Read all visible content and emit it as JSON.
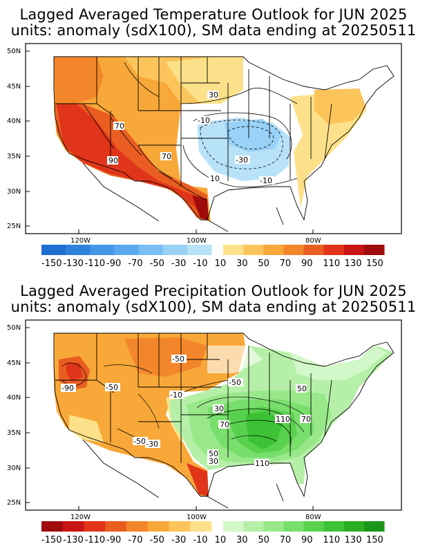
{
  "temperature": {
    "title_line1": "Lagged Averaged Temperature Outlook for JUN 2025",
    "title_line2": "units: anomaly (sdX100), SM data ending at 20250511",
    "lat_labels": [
      "50N",
      "45N",
      "40N",
      "35N",
      "30N",
      "25N"
    ],
    "lon_labels": [
      "120W",
      "100W",
      "80W"
    ],
    "contour_labels": [
      "30",
      "-10",
      "70",
      "70",
      "90",
      "-30",
      "10",
      "-10",
      "70"
    ],
    "colorbar": {
      "labels": [
        "-150",
        "-130",
        "-110",
        "-90",
        "-70",
        "-50",
        "-30",
        "-10",
        "10",
        "30",
        "50",
        "70",
        "90",
        "110",
        "130",
        "150"
      ],
      "neg_colors": [
        "#1e6ed2",
        "#2f82dc",
        "#4496e6",
        "#5aa9ee",
        "#78bef4",
        "#99d1f7",
        "#b8e2f8"
      ],
      "pos_colors": [
        "#fde18a",
        "#fcc55c",
        "#f8a838",
        "#f3862a",
        "#ea5d20",
        "#e0351a",
        "#c81414",
        "#a00c0c"
      ]
    }
  },
  "precipitation": {
    "title_line1": "Lagged Averaged Precipitation Outlook for JUN 2025",
    "title_line2": "units: anomaly (sdX100), SM data ending at 20250511",
    "lat_labels": [
      "50N",
      "45N",
      "40N",
      "35N",
      "30N",
      "25N"
    ],
    "lon_labels": [
      "120W",
      "100W",
      "80W"
    ],
    "contour_labels": [
      "-90",
      "-50",
      "-50",
      "-50",
      "-10",
      "30",
      "70",
      "50",
      "-50",
      "-30",
      "50",
      "30",
      "110",
      "110",
      "70",
      "110",
      "50"
    ],
    "colorbar": {
      "labels": [
        "-150",
        "-130",
        "-110",
        "-90",
        "-70",
        "-50",
        "-30",
        "-10",
        "10",
        "30",
        "50",
        "70",
        "90",
        "110",
        "130",
        "150"
      ],
      "neg_colors": [
        "#a00c0c",
        "#c81414",
        "#e0351a",
        "#ea5d20",
        "#f3862a",
        "#f8a838",
        "#fcc55c",
        "#fde18a"
      ],
      "pos_colors": [
        "#d2f7c8",
        "#b6f0a8",
        "#98e88a",
        "#78de6c",
        "#58d24e",
        "#3cc234",
        "#2aae22",
        "#1c961a"
      ]
    }
  }
}
